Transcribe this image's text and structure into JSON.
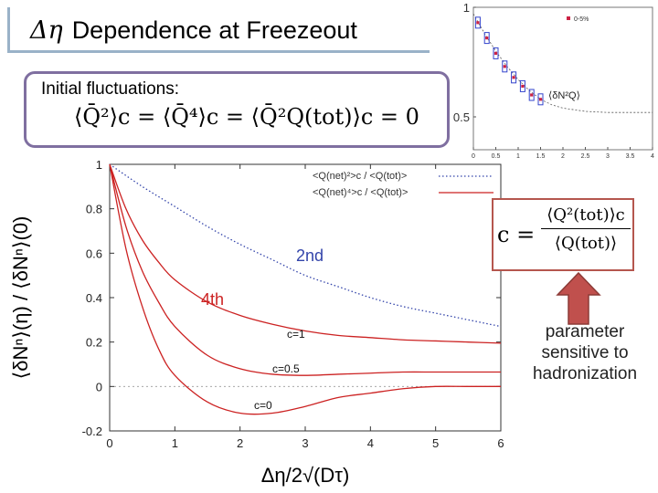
{
  "title": {
    "symbol": "Δη",
    "text": "Dependence at Freezeout"
  },
  "initial_fluctuations": {
    "label": "Initial fluctuations:",
    "formula": "⟨Q̄²⟩c = ⟨Q̄⁴⟩c = ⟨Q̄²Q(tot)⟩c = 0"
  },
  "c_definition": {
    "lhs": "c =",
    "numerator": "⟨Q²(tot)⟩c",
    "denominator": "⟨Q(tot)⟩"
  },
  "parameter_note": {
    "line1": "parameter",
    "line2": "sensitive to",
    "line3": "hadronization"
  },
  "colors": {
    "red": "#cc2222",
    "blue": "#3344aa",
    "purple_box": "#7f6fa0",
    "arrow": "#c0504d"
  },
  "chart_data": [
    {
      "type": "line",
      "title": "",
      "xlabel": "Δη/2√(Dτ)",
      "ylabel": "⟨δNⁿ⟩(η) / ⟨δNⁿ⟩(0)",
      "xlim": [
        0,
        6
      ],
      "ylim": [
        -0.2,
        1.0
      ],
      "x_ticks": [
        "0",
        "1",
        "2",
        "3",
        "4",
        "5",
        "6"
      ],
      "y_ticks": [
        "-0.2",
        "0",
        "0.2",
        "0.4",
        "0.6",
        "0.8",
        "1"
      ],
      "legend": [
        {
          "label": "<Q(net)²>c / <Q(tot)>",
          "style": "dotted",
          "color": "#3344aa"
        },
        {
          "label": "<Q(net)⁴>c / <Q(tot)>",
          "style": "solid",
          "color": "#cc2222"
        }
      ],
      "annotations": {
        "second": "2nd",
        "fourth": "4th"
      },
      "series": [
        {
          "name": "2nd",
          "color": "#3344aa",
          "x": [
            0,
            0.5,
            1,
            1.5,
            2,
            2.5,
            3,
            3.5,
            4,
            4.5,
            5,
            5.5,
            6
          ],
          "y": [
            1.0,
            0.9,
            0.81,
            0.72,
            0.64,
            0.57,
            0.5,
            0.45,
            0.4,
            0.36,
            0.33,
            0.3,
            0.27
          ]
        },
        {
          "name": "c=1",
          "color": "#cc2222",
          "x": [
            0,
            0.25,
            0.5,
            0.75,
            1,
            1.5,
            2,
            2.5,
            3,
            3.5,
            4,
            4.5,
            5,
            5.5,
            6
          ],
          "y": [
            1.0,
            0.8,
            0.66,
            0.56,
            0.48,
            0.38,
            0.32,
            0.28,
            0.25,
            0.23,
            0.22,
            0.21,
            0.205,
            0.2,
            0.195
          ]
        },
        {
          "name": "c=0.5",
          "color": "#cc2222",
          "x": [
            0,
            0.25,
            0.5,
            0.75,
            1,
            1.5,
            2,
            2.5,
            3,
            3.5,
            4,
            4.5,
            5,
            5.5,
            6
          ],
          "y": [
            1.0,
            0.72,
            0.52,
            0.38,
            0.27,
            0.14,
            0.08,
            0.055,
            0.05,
            0.055,
            0.06,
            0.065,
            0.065,
            0.065,
            0.065
          ]
        },
        {
          "name": "c=0",
          "color": "#cc2222",
          "x": [
            0,
            0.25,
            0.5,
            0.75,
            1,
            1.5,
            2,
            2.5,
            3,
            3.5,
            4,
            4.5,
            5,
            5.5,
            6
          ],
          "y": [
            1.0,
            0.62,
            0.36,
            0.17,
            0.05,
            -0.07,
            -0.12,
            -0.12,
            -0.09,
            -0.05,
            -0.03,
            -0.01,
            0.0,
            0.0,
            0.0
          ]
        }
      ],
      "curve_labels": [
        "c=1",
        "c=0.5",
        "c=0"
      ]
    },
    {
      "type": "scatter",
      "title": "",
      "xlim": [
        0,
        4
      ],
      "ylim": [
        0.35,
        1.0
      ],
      "x_ticks": [
        "0",
        "0.5",
        "1",
        "1.5",
        "2",
        "2.5",
        "3",
        "3.5",
        "4"
      ],
      "y_ticks": [
        "0.5",
        "1"
      ],
      "legend": [
        {
          "label": "0-5%",
          "color": "#cc2244"
        }
      ],
      "annotation": "⟨δN²Q⟩",
      "points": {
        "x": [
          0.1,
          0.3,
          0.5,
          0.7,
          0.9,
          1.1,
          1.3,
          1.5
        ],
        "y": [
          0.93,
          0.86,
          0.79,
          0.73,
          0.68,
          0.64,
          0.6,
          0.58
        ]
      },
      "fit_curve": {
        "x": [
          0,
          0.25,
          0.5,
          0.75,
          1,
          1.25,
          1.5,
          1.75,
          2,
          2.5,
          3,
          3.5,
          4
        ],
        "y": [
          0.97,
          0.88,
          0.8,
          0.73,
          0.67,
          0.62,
          0.58,
          0.555,
          0.54,
          0.525,
          0.52,
          0.52,
          0.52
        ]
      }
    }
  ]
}
